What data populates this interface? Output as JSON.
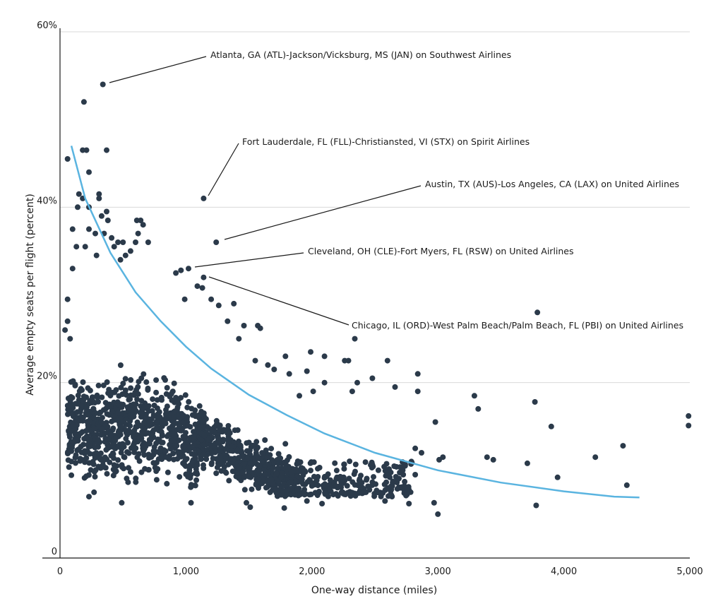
{
  "chart_data": {
    "type": "scatter",
    "title": "",
    "xlabel": "One-way distance (miles)",
    "ylabel": "Average empty seats per flight (percent)",
    "xlim": [
      0,
      5000
    ],
    "ylim": [
      0,
      60
    ],
    "x_ticks": [
      0,
      1000,
      2000,
      3000,
      4000,
      5000
    ],
    "x_tick_labels": [
      "0",
      "1,000",
      "2,000",
      "3,000",
      "4,000",
      "5,000"
    ],
    "y_ticks": [
      0,
      20,
      40,
      60
    ],
    "y_tick_labels": [
      "0",
      "20%",
      "40%",
      "60%"
    ],
    "grid": "horizontal",
    "colors": {
      "points": "#2b3a4a",
      "trend": "#5ab4e0",
      "grid": "#d9d9d9",
      "text": "#1a1a1a"
    },
    "trend_line": {
      "type": "curve",
      "points": [
        [
          90,
          47
        ],
        [
          200,
          41
        ],
        [
          400,
          34.8
        ],
        [
          600,
          30.3
        ],
        [
          800,
          27
        ],
        [
          1000,
          24.1
        ],
        [
          1200,
          21.6
        ],
        [
          1500,
          18.6
        ],
        [
          1800,
          16.3
        ],
        [
          2100,
          14.2
        ],
        [
          2500,
          12
        ],
        [
          3000,
          10
        ],
        [
          3500,
          8.6
        ],
        [
          4000,
          7.6
        ],
        [
          4400,
          7
        ],
        [
          4600,
          6.9
        ]
      ]
    },
    "annotations": [
      {
        "label": "Atlanta, GA (ATL)-Jackson/Vicksburg, MS (JAN) on Southwest Airlines",
        "x": 340,
        "y": 54
      },
      {
        "label": "Fort Lauderdale, FL (FLL)-Christiansted, VI (STX) on Spirit Airlines",
        "x": 1140,
        "y": 41
      },
      {
        "label": "Austin, TX (AUS)-Los Angeles, CA (LAX) on United Airlines",
        "x": 1240,
        "y": 36
      },
      {
        "label": "Cleveland, OH (CLE)-Fort Myers, FL (RSW) on United Airlines",
        "x": 1020,
        "y": 33
      },
      {
        "label": "Chicago, IL (ORD)-West Palm Beach/Palm Beach, FL (PBI) on United Airlines",
        "x": 1140,
        "y": 32
      }
    ],
    "series": [
      {
        "values": [
          [
            340,
            54
          ],
          [
            190,
            52
          ],
          [
            1140,
            41
          ],
          [
            1240,
            36
          ],
          [
            1020,
            33
          ],
          [
            1140,
            32
          ],
          [
            3790,
            28
          ],
          [
            2340,
            25
          ],
          [
            60,
            45.5
          ],
          [
            180,
            46.5
          ],
          [
            210,
            46.5
          ],
          [
            370,
            46.5
          ],
          [
            230,
            44
          ],
          [
            150,
            41.5
          ],
          [
            310,
            41.5
          ],
          [
            310,
            41
          ],
          [
            180,
            41
          ],
          [
            140,
            40
          ],
          [
            230,
            40
          ],
          [
            370,
            39.5
          ],
          [
            330,
            39
          ],
          [
            380,
            38.5
          ],
          [
            100,
            37.5
          ],
          [
            230,
            37.5
          ],
          [
            280,
            37
          ],
          [
            350,
            37
          ],
          [
            410,
            36.5
          ],
          [
            460,
            36
          ],
          [
            130,
            35.5
          ],
          [
            200,
            35.5
          ],
          [
            290,
            34.5
          ],
          [
            520,
            34.5
          ],
          [
            560,
            35
          ],
          [
            610,
            38.5
          ],
          [
            640,
            38.5
          ],
          [
            660,
            38
          ],
          [
            620,
            37
          ],
          [
            600,
            36
          ],
          [
            700,
            36
          ],
          [
            500,
            36
          ],
          [
            430,
            35.5
          ],
          [
            480,
            34
          ],
          [
            100,
            33
          ],
          [
            60,
            29.5
          ],
          [
            60,
            27
          ],
          [
            80,
            25
          ],
          [
            40,
            26
          ],
          [
            920,
            32.5
          ],
          [
            960,
            32.8
          ],
          [
            1090,
            31
          ],
          [
            1130,
            30.8
          ],
          [
            990,
            29.5
          ],
          [
            1200,
            29.5
          ],
          [
            1260,
            28.8
          ],
          [
            1330,
            27
          ],
          [
            1380,
            29
          ],
          [
            1420,
            25
          ],
          [
            1460,
            26.5
          ],
          [
            1570,
            26.5
          ],
          [
            1590,
            26.2
          ],
          [
            1550,
            22.5
          ],
          [
            1700,
            21.5
          ],
          [
            1650,
            22
          ],
          [
            1820,
            21
          ],
          [
            1960,
            21.3
          ],
          [
            1990,
            23.5
          ],
          [
            2100,
            23
          ],
          [
            2260,
            22.5
          ],
          [
            2290,
            22.5
          ],
          [
            1790,
            23
          ],
          [
            2600,
            22.5
          ],
          [
            2840,
            21
          ],
          [
            2840,
            19
          ],
          [
            2660,
            19.5
          ],
          [
            2480,
            20.5
          ],
          [
            2360,
            20
          ],
          [
            2320,
            19
          ],
          [
            2100,
            20
          ],
          [
            2010,
            19
          ],
          [
            1900,
            18.5
          ],
          [
            3290,
            18.5
          ],
          [
            3320,
            17
          ],
          [
            3770,
            17.8
          ],
          [
            3900,
            15
          ],
          [
            4990,
            16.2
          ],
          [
            4990,
            15.1
          ],
          [
            2980,
            15.5
          ],
          [
            3040,
            11.5
          ],
          [
            3390,
            11.5
          ],
          [
            3440,
            11.2
          ],
          [
            3710,
            10.8
          ],
          [
            4250,
            11.5
          ],
          [
            4470,
            12.8
          ],
          [
            3950,
            9.2
          ],
          [
            4500,
            8.3
          ],
          [
            3780,
            6
          ],
          [
            2970,
            6.3
          ],
          [
            3000,
            5
          ],
          [
            2770,
            6.2
          ],
          [
            2580,
            6.5
          ],
          [
            1510,
            5.8
          ],
          [
            1480,
            6.3
          ],
          [
            1780,
            5.7
          ],
          [
            1960,
            6.5
          ],
          [
            2080,
            6.2
          ],
          [
            1040,
            6.3
          ],
          [
            490,
            6.3
          ],
          [
            230,
            7
          ],
          [
            270,
            7.5
          ],
          [
            2420,
            7.5
          ],
          [
            2700,
            8
          ],
          [
            2820,
            9.5
          ],
          [
            2870,
            12
          ],
          [
            2820,
            12.5
          ],
          [
            3010,
            11.2
          ],
          [
            2790,
            11
          ],
          [
            2740,
            10.5
          ]
        ]
      }
    ]
  }
}
